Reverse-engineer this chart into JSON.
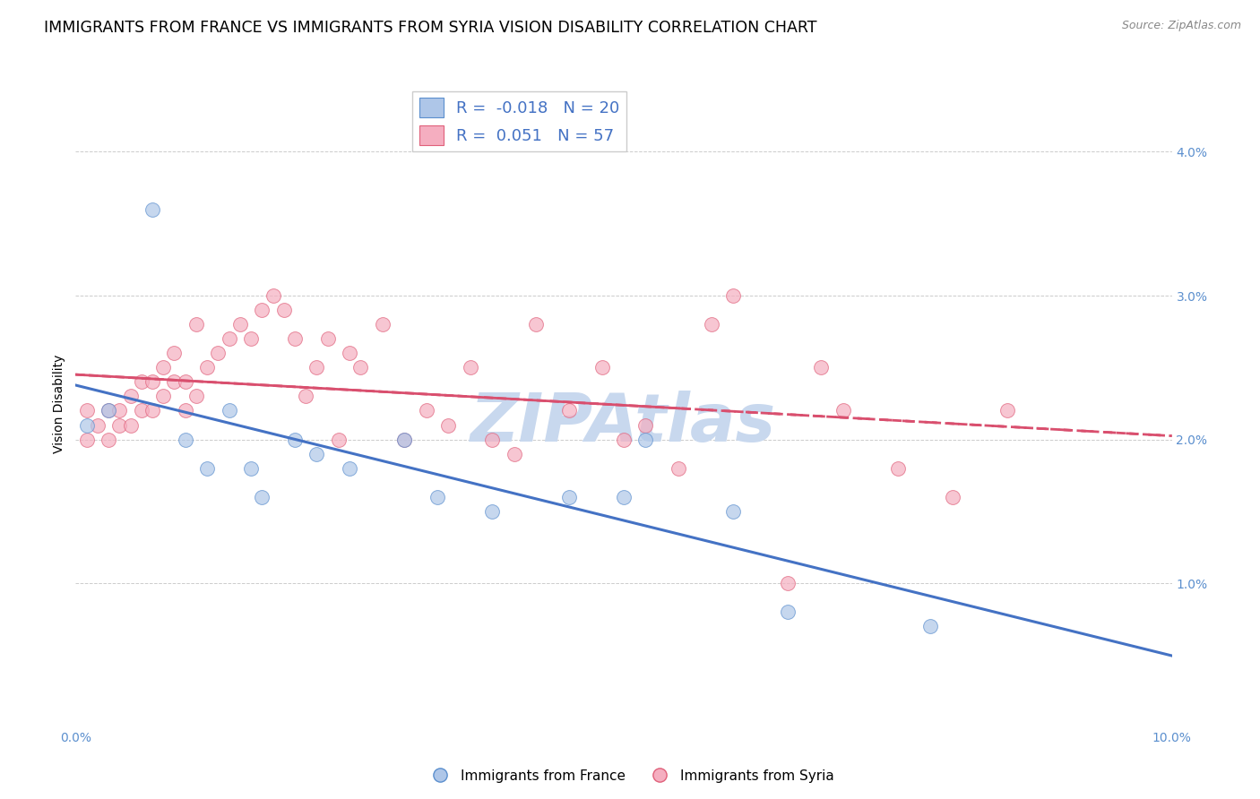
{
  "title": "IMMIGRANTS FROM FRANCE VS IMMIGRANTS FROM SYRIA VISION DISABILITY CORRELATION CHART",
  "source": "Source: ZipAtlas.com",
  "ylabel": "Vision Disability",
  "xlim": [
    0.0,
    0.1
  ],
  "ylim": [
    0.0,
    0.045
  ],
  "yticks": [
    0.0,
    0.01,
    0.02,
    0.03,
    0.04
  ],
  "xticks": [
    0.0,
    0.02,
    0.04,
    0.06,
    0.08,
    0.1
  ],
  "france_color": "#aec6e8",
  "syria_color": "#f5aec0",
  "france_edge_color": "#5b8fce",
  "syria_edge_color": "#e0607a",
  "france_line_color": "#4472c4",
  "syria_line_color": "#d94f6e",
  "france_R": -0.018,
  "france_N": 20,
  "syria_R": 0.051,
  "syria_N": 57,
  "france_x": [
    0.001,
    0.003,
    0.007,
    0.01,
    0.012,
    0.014,
    0.016,
    0.017,
    0.02,
    0.022,
    0.025,
    0.03,
    0.033,
    0.038,
    0.045,
    0.05,
    0.052,
    0.06,
    0.065,
    0.078
  ],
  "france_y": [
    0.021,
    0.022,
    0.036,
    0.02,
    0.018,
    0.022,
    0.018,
    0.016,
    0.02,
    0.019,
    0.018,
    0.02,
    0.016,
    0.015,
    0.016,
    0.016,
    0.02,
    0.015,
    0.008,
    0.007
  ],
  "syria_x": [
    0.001,
    0.001,
    0.002,
    0.003,
    0.003,
    0.004,
    0.004,
    0.005,
    0.005,
    0.006,
    0.006,
    0.007,
    0.007,
    0.008,
    0.008,
    0.009,
    0.009,
    0.01,
    0.01,
    0.011,
    0.011,
    0.012,
    0.013,
    0.014,
    0.015,
    0.016,
    0.017,
    0.018,
    0.019,
    0.02,
    0.021,
    0.022,
    0.023,
    0.024,
    0.025,
    0.026,
    0.028,
    0.03,
    0.032,
    0.034,
    0.036,
    0.038,
    0.04,
    0.042,
    0.045,
    0.048,
    0.05,
    0.052,
    0.055,
    0.058,
    0.06,
    0.065,
    0.068,
    0.07,
    0.075,
    0.08,
    0.085
  ],
  "syria_y": [
    0.02,
    0.022,
    0.021,
    0.022,
    0.02,
    0.022,
    0.021,
    0.023,
    0.021,
    0.024,
    0.022,
    0.024,
    0.022,
    0.023,
    0.025,
    0.024,
    0.026,
    0.022,
    0.024,
    0.023,
    0.028,
    0.025,
    0.026,
    0.027,
    0.028,
    0.027,
    0.029,
    0.03,
    0.029,
    0.027,
    0.023,
    0.025,
    0.027,
    0.02,
    0.026,
    0.025,
    0.028,
    0.02,
    0.022,
    0.021,
    0.025,
    0.02,
    0.019,
    0.028,
    0.022,
    0.025,
    0.02,
    0.021,
    0.018,
    0.028,
    0.03,
    0.01,
    0.025,
    0.022,
    0.018,
    0.016,
    0.022
  ],
  "marker_size": 130,
  "marker_alpha": 0.7,
  "watermark": "ZIPAtlas",
  "watermark_color": "#c8d8ee",
  "watermark_fontsize": 54,
  "title_fontsize": 12.5,
  "axis_label_fontsize": 10,
  "tick_fontsize": 10,
  "legend_fontsize": 13,
  "tick_color": "#5b8fce"
}
